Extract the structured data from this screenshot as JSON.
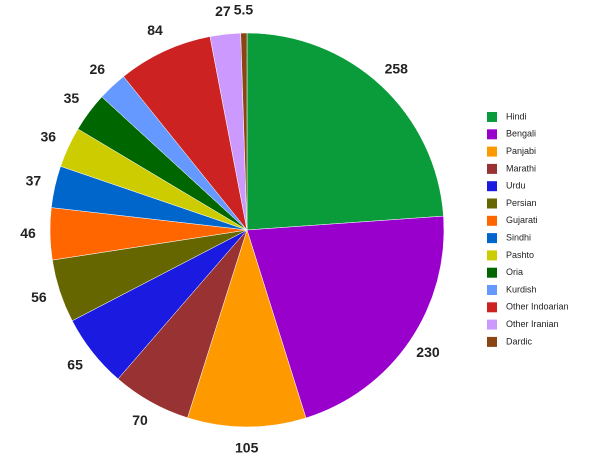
{
  "chart_data": {
    "type": "pie",
    "categories": [
      "Hindi",
      "Bengali",
      "Panjabi",
      "Marathi",
      "Urdu",
      "Persian",
      "Gujarati",
      "Sindhi",
      "Pashto",
      "Oria",
      "Kurdish",
      "Other Indoarian",
      "Other Iranian",
      "Dardic"
    ],
    "values": [
      258,
      230,
      105,
      70,
      65,
      56,
      46,
      37,
      36,
      35,
      26,
      84,
      27,
      5.5
    ],
    "colors": [
      "#0a9b3a",
      "#9900cc",
      "#ff9900",
      "#993333",
      "#1a1ae0",
      "#666600",
      "#ff6600",
      "#0066cc",
      "#cccc00",
      "#006600",
      "#6699ff",
      "#cc2222",
      "#cc99ff",
      "#8b4513"
    ],
    "legend": "right"
  }
}
